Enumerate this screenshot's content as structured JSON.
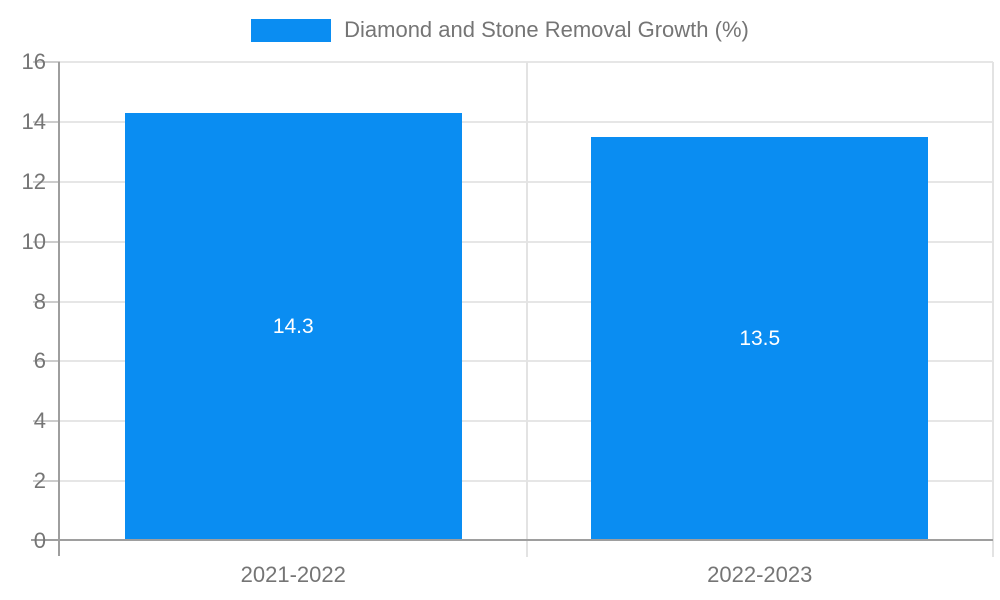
{
  "legend": {
    "label": "Diamond and Stone Removal Growth (%)"
  },
  "chart_data": {
    "type": "bar",
    "title": "Diamond and Stone Removal Growth (%)",
    "categories": [
      "2021-2022",
      "2022-2023"
    ],
    "values": [
      14.3,
      13.5
    ],
    "bar_labels": [
      "14.3",
      "13.5"
    ],
    "xlabel": "",
    "ylabel": "",
    "ylim": [
      0,
      16
    ],
    "ytick_step": 2,
    "ytick_labels": [
      "0",
      "2",
      "4",
      "6",
      "8",
      "10",
      "12",
      "14",
      "16"
    ],
    "grid": true,
    "legend_position": "top-center",
    "colors": {
      "bar": "#0a8df2",
      "axis_label": "#757575",
      "bar_label": "#ffffff",
      "gridline": "#e6e6e6",
      "divider_gridline": "#e3e3e3",
      "tick": "#cccccc",
      "axis_line": "#9e9e9e"
    }
  }
}
